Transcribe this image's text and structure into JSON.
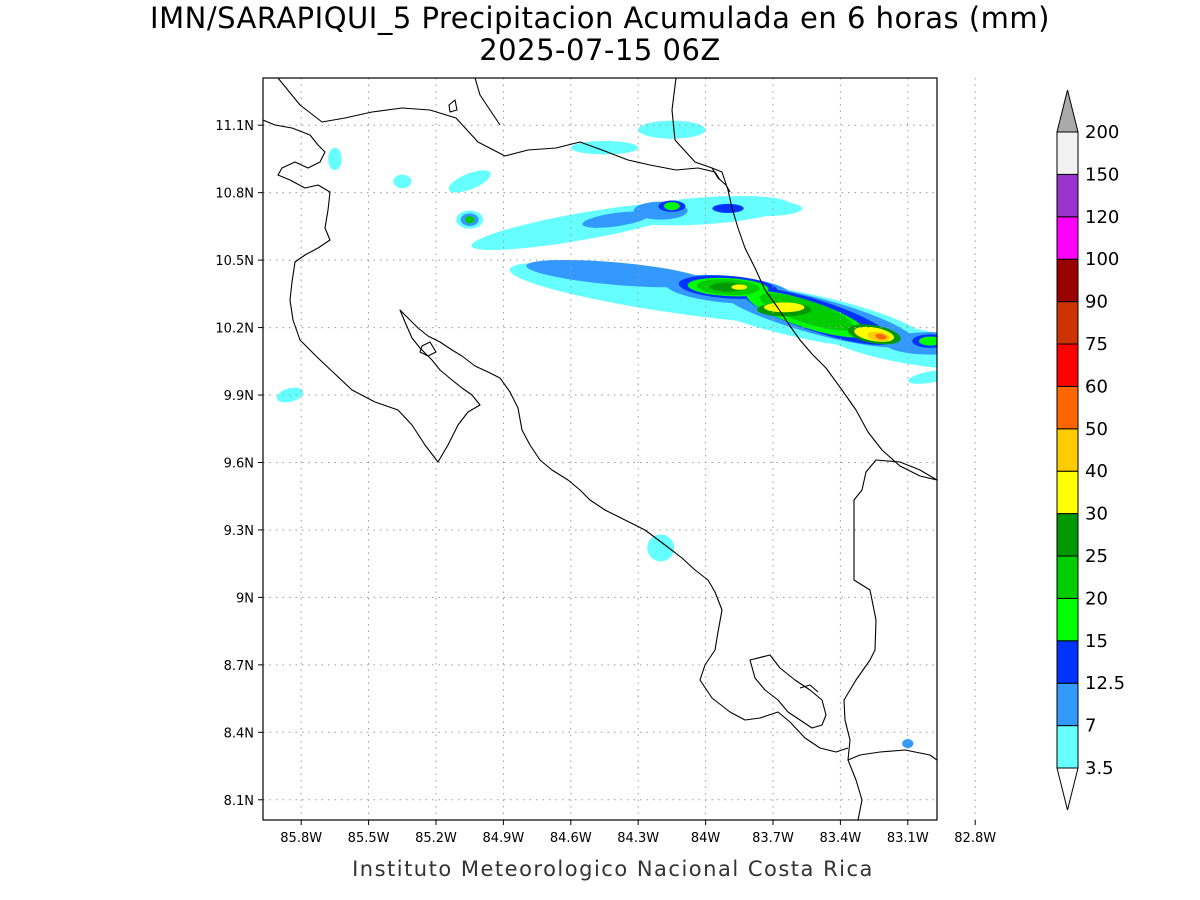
{
  "title_line1": "IMN/SARAPIQUI_5 Precipitacion Acumulada en 6 horas (mm)",
  "title_line2": "2025-07-15 06Z",
  "credit": "Instituto Meteorologico Nacional Costa Rica",
  "lon_ticks": [
    {
      "value": -85.8,
      "label": "85.8W"
    },
    {
      "value": -85.5,
      "label": "85.5W"
    },
    {
      "value": -85.2,
      "label": "85.2W"
    },
    {
      "value": -84.9,
      "label": "84.9W"
    },
    {
      "value": -84.6,
      "label": "84.6W"
    },
    {
      "value": -84.3,
      "label": "84.3W"
    },
    {
      "value": -84.0,
      "label": "84W"
    },
    {
      "value": -83.7,
      "label": "83.7W"
    },
    {
      "value": -83.4,
      "label": "83.4W"
    },
    {
      "value": -83.1,
      "label": "83.1W"
    },
    {
      "value": -82.8,
      "label": "82.8W"
    }
  ],
  "lat_ticks": [
    {
      "value": 11.1,
      "label": "11.1N"
    },
    {
      "value": 10.8,
      "label": "10.8N"
    },
    {
      "value": 10.5,
      "label": "10.5N"
    },
    {
      "value": 10.2,
      "label": "10.2N"
    },
    {
      "value": 9.9,
      "label": "9.9N"
    },
    {
      "value": 9.6,
      "label": "9.6N"
    },
    {
      "value": 9.3,
      "label": "9.3N"
    },
    {
      "value": 9.0,
      "label": "9N"
    },
    {
      "value": 8.7,
      "label": "8.7N"
    },
    {
      "value": 8.4,
      "label": "8.4N"
    },
    {
      "value": 8.1,
      "label": "8.1N"
    }
  ],
  "extent": {
    "lon_min": -85.97,
    "lon_max": -82.97,
    "lat_min": 8.01,
    "lat_max": 11.31
  },
  "colorbar": {
    "levels": [
      "3.5",
      "7",
      "12.5",
      "15",
      "20",
      "25",
      "30",
      "40",
      "50",
      "60",
      "75",
      "90",
      "100",
      "120",
      "150",
      "200"
    ],
    "colors": [
      "#66ffff",
      "#3399ff",
      "#0033ff",
      "#00ff00",
      "#00cc00",
      "#009900",
      "#ffff00",
      "#ffcc00",
      "#ff6600",
      "#ff0000",
      "#cc3300",
      "#990000",
      "#ff00ff",
      "#9933cc",
      "#f2f2f2",
      "#aaaaaa"
    ],
    "under_color": "#ffffff",
    "over_color": "#aaaaaa"
  },
  "precip_cells": [
    {
      "lon": -85.05,
      "lat": 10.85,
      "rx": 0.1,
      "ry": 0.035,
      "rot": -22,
      "level": 0
    },
    {
      "lon": -84.55,
      "lat": 10.65,
      "rx": 0.5,
      "ry": 0.06,
      "rot": -10,
      "level": 0
    },
    {
      "lon": -84.0,
      "lat": 10.72,
      "rx": 0.38,
      "ry": 0.06,
      "rot": -4,
      "level": 0
    },
    {
      "lon": -83.75,
      "lat": 10.73,
      "rx": 0.18,
      "ry": 0.035,
      "rot": 0,
      "level": 0
    },
    {
      "lon": -84.2,
      "lat": 10.72,
      "rx": 0.12,
      "ry": 0.04,
      "rot": 0,
      "level": 1
    },
    {
      "lon": -84.4,
      "lat": 10.68,
      "rx": 0.15,
      "ry": 0.03,
      "rot": -8,
      "level": 1
    },
    {
      "lon": -84.15,
      "lat": 10.74,
      "rx": 0.06,
      "ry": 0.025,
      "rot": 0,
      "level": 2
    },
    {
      "lon": -83.9,
      "lat": 10.73,
      "rx": 0.07,
      "ry": 0.02,
      "rot": 0,
      "level": 2
    },
    {
      "lon": -84.15,
      "lat": 10.74,
      "rx": 0.035,
      "ry": 0.018,
      "rot": 0,
      "level": 3
    },
    {
      "lon": -85.05,
      "lat": 10.68,
      "rx": 0.06,
      "ry": 0.04,
      "rot": 0,
      "level": 0
    },
    {
      "lon": -85.05,
      "lat": 10.68,
      "rx": 0.04,
      "ry": 0.028,
      "rot": 0,
      "level": 1
    },
    {
      "lon": -85.05,
      "lat": 10.68,
      "rx": 0.02,
      "ry": 0.016,
      "rot": 0,
      "level": 4
    },
    {
      "lon": -84.1,
      "lat": 10.35,
      "rx": 0.78,
      "ry": 0.09,
      "rot": 8,
      "level": 0
    },
    {
      "lon": -83.55,
      "lat": 10.25,
      "rx": 0.55,
      "ry": 0.1,
      "rot": 12,
      "level": 0
    },
    {
      "lon": -83.1,
      "lat": 10.12,
      "rx": 0.4,
      "ry": 0.08,
      "rot": 10,
      "level": 0
    },
    {
      "lon": -84.4,
      "lat": 10.44,
      "rx": 0.4,
      "ry": 0.05,
      "rot": 5,
      "level": 1
    },
    {
      "lon": -83.9,
      "lat": 10.37,
      "rx": 0.28,
      "ry": 0.06,
      "rot": 5,
      "level": 1
    },
    {
      "lon": -83.5,
      "lat": 10.25,
      "rx": 0.45,
      "ry": 0.08,
      "rot": 15,
      "level": 1
    },
    {
      "lon": -83.0,
      "lat": 10.13,
      "rx": 0.2,
      "ry": 0.05,
      "rot": 0,
      "level": 1
    },
    {
      "lon": -83.9,
      "lat": 10.38,
      "rx": 0.22,
      "ry": 0.05,
      "rot": 4,
      "level": 2
    },
    {
      "lon": -83.5,
      "lat": 10.25,
      "rx": 0.35,
      "ry": 0.07,
      "rot": 18,
      "level": 2
    },
    {
      "lon": -83.0,
      "lat": 10.14,
      "rx": 0.08,
      "ry": 0.03,
      "rot": 0,
      "level": 2
    },
    {
      "lon": -83.9,
      "lat": 10.38,
      "rx": 0.18,
      "ry": 0.04,
      "rot": 3,
      "level": 3
    },
    {
      "lon": -83.55,
      "lat": 10.26,
      "rx": 0.28,
      "ry": 0.06,
      "rot": 18,
      "level": 3
    },
    {
      "lon": -83.0,
      "lat": 10.14,
      "rx": 0.05,
      "ry": 0.02,
      "rot": 0,
      "level": 3
    },
    {
      "lon": -83.9,
      "lat": 10.38,
      "rx": 0.14,
      "ry": 0.035,
      "rot": 3,
      "level": 4
    },
    {
      "lon": -83.55,
      "lat": 10.27,
      "rx": 0.22,
      "ry": 0.05,
      "rot": 18,
      "level": 4
    },
    {
      "lon": -83.9,
      "lat": 10.38,
      "rx": 0.08,
      "ry": 0.02,
      "rot": 0,
      "level": 5
    },
    {
      "lon": -83.65,
      "lat": 10.28,
      "rx": 0.12,
      "ry": 0.03,
      "rot": 0,
      "level": 5
    },
    {
      "lon": -83.25,
      "lat": 10.17,
      "rx": 0.12,
      "ry": 0.04,
      "rot": 10,
      "level": 5
    },
    {
      "lon": -83.65,
      "lat": 10.29,
      "rx": 0.09,
      "ry": 0.022,
      "rot": 0,
      "level": 6
    },
    {
      "lon": -83.25,
      "lat": 10.17,
      "rx": 0.09,
      "ry": 0.03,
      "rot": 10,
      "level": 6
    },
    {
      "lon": -83.85,
      "lat": 10.38,
      "rx": 0.035,
      "ry": 0.012,
      "rot": 0,
      "level": 6
    },
    {
      "lon": -83.23,
      "lat": 10.16,
      "rx": 0.05,
      "ry": 0.02,
      "rot": 10,
      "level": 7
    },
    {
      "lon": -83.22,
      "lat": 10.16,
      "rx": 0.025,
      "ry": 0.012,
      "rot": 10,
      "level": 8
    },
    {
      "lon": -85.65,
      "lat": 10.95,
      "rx": 0.03,
      "ry": 0.05,
      "rot": 0,
      "level": 0
    },
    {
      "lon": -85.35,
      "lat": 10.85,
      "rx": 0.04,
      "ry": 0.03,
      "rot": 0,
      "level": 0
    },
    {
      "lon": -85.85,
      "lat": 9.9,
      "rx": 0.06,
      "ry": 0.03,
      "rot": -15,
      "level": 0
    },
    {
      "lon": -84.2,
      "lat": 9.22,
      "rx": 0.06,
      "ry": 0.06,
      "rot": 40,
      "level": 0
    },
    {
      "lon": -82.85,
      "lat": 9.75,
      "rx": 0.04,
      "ry": 0.02,
      "rot": 0,
      "level": 0
    },
    {
      "lon": -83.0,
      "lat": 9.98,
      "rx": 0.1,
      "ry": 0.025,
      "rot": -10,
      "level": 0
    },
    {
      "lon": -84.15,
      "lat": 11.08,
      "rx": 0.15,
      "ry": 0.04,
      "rot": 0,
      "level": 0
    },
    {
      "lon": -84.45,
      "lat": 11.0,
      "rx": 0.15,
      "ry": 0.03,
      "rot": 0,
      "level": 0
    },
    {
      "lon": -83.1,
      "lat": 8.35,
      "rx": 0.025,
      "ry": 0.02,
      "rot": 0,
      "level": 1
    }
  ]
}
